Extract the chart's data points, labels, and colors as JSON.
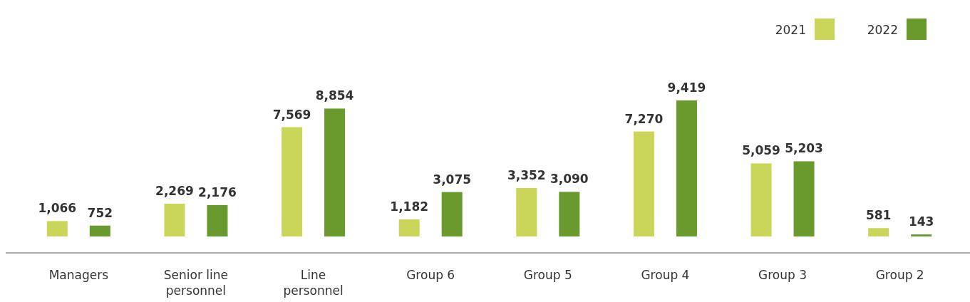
{
  "chart_data": {
    "type": "bar",
    "categories": [
      "Managers",
      "Senior line personnel",
      "Line personnel",
      "Group 6",
      "Group 5",
      "Group 4",
      "Group 3",
      "Group 2"
    ],
    "series": [
      {
        "name": "2021",
        "color": "#c9d65a",
        "values": [
          1066,
          2269,
          7569,
          1182,
          3352,
          7270,
          5059,
          581
        ],
        "value_labels": [
          "1,066",
          "2,269",
          "7,569",
          "1,182",
          "3,352",
          "7,270",
          "5,059",
          "581"
        ]
      },
      {
        "name": "2022",
        "color": "#6a9a2e",
        "values": [
          752,
          2176,
          8854,
          3075,
          3090,
          9419,
          5203,
          143
        ],
        "value_labels": [
          "752",
          "2,176",
          "8,854",
          "3,075",
          "3,090",
          "9,419",
          "5,203",
          "143"
        ]
      }
    ],
    "legend": "top right"
  }
}
